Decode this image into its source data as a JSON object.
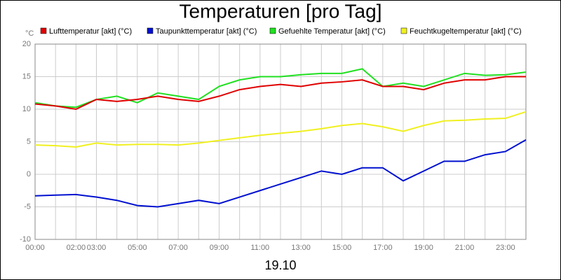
{
  "chart_data": {
    "type": "line",
    "title": "Temperaturen [pro Tag]",
    "xlabel": "19.10",
    "yunit": "°C",
    "x": [
      0,
      1,
      2,
      3,
      4,
      5,
      6,
      7,
      8,
      9,
      10,
      11,
      12,
      13,
      14,
      15,
      16,
      17,
      18,
      19,
      20,
      21,
      22,
      23,
      24
    ],
    "series": [
      {
        "name": "Lufttemperatur [akt] (°C)",
        "color": "#e00000",
        "values": [
          10.8,
          10.5,
          10.0,
          11.5,
          11.2,
          11.5,
          12.0,
          11.5,
          11.2,
          12.0,
          13.0,
          13.5,
          13.8,
          13.5,
          14.0,
          14.2,
          14.5,
          13.5,
          13.5,
          13.0,
          14.0,
          14.5,
          14.5,
          15.0,
          15.0
        ]
      },
      {
        "name": "Taupunkttemperatur [akt] (°C)",
        "color": "#0010d0",
        "values": [
          -3.3,
          -3.2,
          -3.1,
          -3.5,
          -4.0,
          -4.8,
          -5.0,
          -4.5,
          -4.0,
          -4.5,
          -3.5,
          -2.5,
          -1.5,
          -0.5,
          0.5,
          0,
          1,
          1,
          -1.0,
          0.5,
          2.0,
          2.0,
          3,
          3.5,
          5.3
        ]
      },
      {
        "name": "Gefuehlte Temperatur [akt] (°C)",
        "color": "#20e020",
        "values": [
          11,
          10.5,
          10.3,
          11.5,
          12,
          11,
          12.5,
          12,
          11.5,
          13.5,
          14.5,
          15,
          15,
          15.3,
          15.5,
          15.5,
          16.2,
          13.5,
          14,
          13.5,
          14.5,
          15.5,
          15.2,
          15.3,
          15.7
        ]
      },
      {
        "name": "Feuchtkugeltemperatur [akt] (°C)",
        "color": "#f0f020",
        "values": [
          4.5,
          4.4,
          4.2,
          4.8,
          4.5,
          4.6,
          4.6,
          4.5,
          4.8,
          5.2,
          5.6,
          6,
          6.3,
          6.6,
          7,
          7.5,
          7.8,
          7.3,
          6.6,
          7.5,
          8.2,
          8.3,
          8.5,
          8.6,
          9.6
        ]
      }
    ],
    "xlim": [
      0,
      24
    ],
    "xticks": [
      {
        "value": 0,
        "label": "00:00"
      },
      {
        "value": 2,
        "label": "02:00"
      },
      {
        "value": 3,
        "label": "03:00"
      },
      {
        "value": 5,
        "label": "05:00"
      },
      {
        "value": 7,
        "label": "07:00"
      },
      {
        "value": 9,
        "label": "09:00"
      },
      {
        "value": 11,
        "label": "11:00"
      },
      {
        "value": 13,
        "label": "13:00"
      },
      {
        "value": 15,
        "label": "15:00"
      },
      {
        "value": 17,
        "label": "17:00"
      },
      {
        "value": 19,
        "label": "19:00"
      },
      {
        "value": 21,
        "label": "21:00"
      },
      {
        "value": 23,
        "label": "23:00"
      }
    ],
    "x_minor_ticks": [
      1,
      4,
      6,
      8,
      10,
      12,
      14,
      16,
      18,
      20,
      22,
      24
    ],
    "ylim": [
      -10,
      20
    ],
    "yticks": [
      -10,
      -5,
      0,
      5,
      10,
      15,
      20
    ],
    "grid": true
  }
}
